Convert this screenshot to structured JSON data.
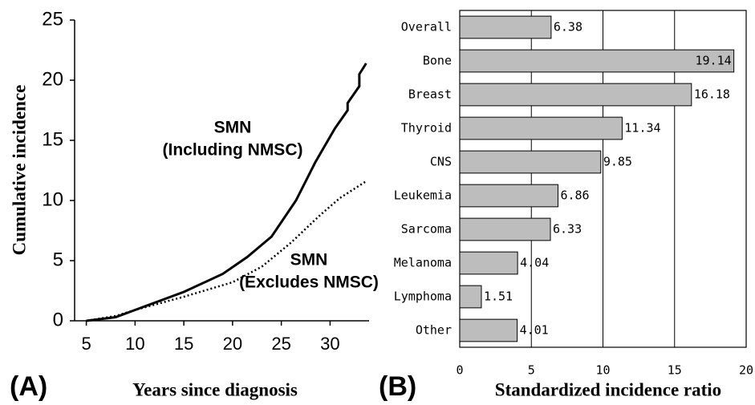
{
  "chart_data": [
    {
      "type": "line",
      "panel_label": "(A)",
      "xlabel": "Years since diagnosis",
      "ylabel": "Cumulative incidence",
      "xlim": [
        3.8,
        34
      ],
      "xticks": [
        5,
        10,
        15,
        20,
        25,
        30
      ],
      "ylim": [
        0,
        25
      ],
      "yticks": [
        0,
        5,
        10,
        15,
        20,
        25
      ],
      "series": [
        {
          "color": "#000000",
          "dashed": false,
          "x": [
            5,
            8,
            10,
            15,
            19,
            21.5,
            24,
            26.5,
            28.5,
            30.5,
            31.8,
            31.8,
            33,
            33,
            33.7
          ],
          "values": [
            0,
            0.3,
            0.9,
            2.4,
            3.9,
            5.3,
            7,
            10,
            13.2,
            16,
            17.5,
            18.1,
            19.5,
            20.5,
            21.4
          ]
        },
        {
          "color": "#000000",
          "dashed": true,
          "x": [
            5,
            8,
            10,
            15,
            20,
            23,
            26,
            29,
            31,
            33.7
          ],
          "values": [
            0,
            0.4,
            0.9,
            2,
            3.2,
            4.5,
            6.5,
            8.8,
            10.2,
            11.6
          ]
        }
      ],
      "annotations": [
        [
          "SMN",
          "(Including NMSC)"
        ],
        [
          "SMN",
          "(Excludes NMSC)"
        ]
      ]
    },
    {
      "type": "bar",
      "panel_label": "(B)",
      "xlabel": "Standardized incidence ratio",
      "color": "#bdbdbd",
      "categories": [
        "Overall",
        "Bone",
        "Breast",
        "Thyroid",
        "CNS",
        "Leukemia",
        "Sarcoma",
        "Melanoma",
        "Lymphoma",
        "Other"
      ],
      "values": [
        6.38,
        19.14,
        16.18,
        11.34,
        9.85,
        6.86,
        6.33,
        4.04,
        1.51,
        4.01
      ],
      "xlim": [
        0,
        20
      ],
      "xticks": [
        0,
        5,
        10,
        15,
        20
      ],
      "grid": true
    }
  ]
}
